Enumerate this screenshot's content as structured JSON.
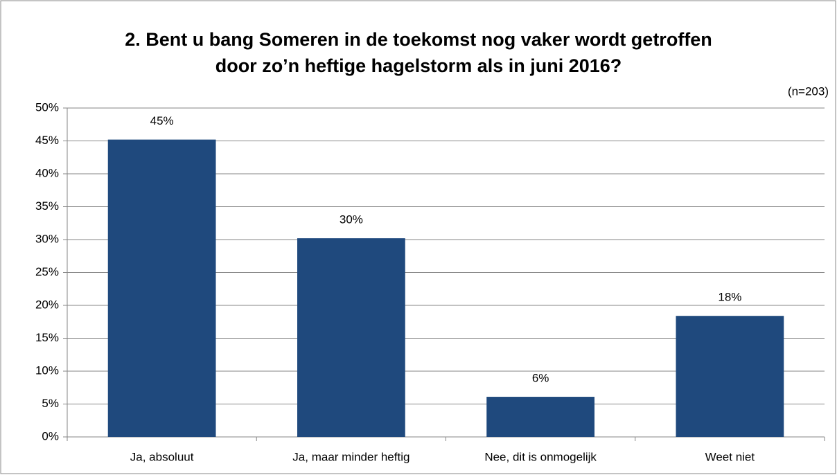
{
  "chart_data": {
    "type": "bar",
    "title": "2. Bent u bang Someren in de toekomst nog vaker wordt getroffen door zo’n heftige hagelstorm als in juni 2016?",
    "annotation": "(n=203)",
    "categories": [
      "Ja, absoluut",
      "Ja, maar minder heftig",
      "Nee, dit is onmogelijk",
      "Weet niet"
    ],
    "values": [
      45.2,
      30.2,
      6.1,
      18.4
    ],
    "value_labels": [
      "45%",
      "30%",
      "6%",
      "18%"
    ],
    "color": "#1f497d",
    "ylim": [
      0,
      50
    ],
    "yticks": [
      {
        "value": 0,
        "label": "0%"
      },
      {
        "value": 5,
        "label": "5%"
      },
      {
        "value": 10,
        "label": "10%"
      },
      {
        "value": 15,
        "label": "15%"
      },
      {
        "value": 20,
        "label": "20%"
      },
      {
        "value": 25,
        "label": "25%"
      },
      {
        "value": 30,
        "label": "30%"
      },
      {
        "value": 35,
        "label": "35%"
      },
      {
        "value": 40,
        "label": "40%"
      },
      {
        "value": 45,
        "label": "45%"
      },
      {
        "value": 50,
        "label": "50%"
      }
    ],
    "grid": true
  }
}
